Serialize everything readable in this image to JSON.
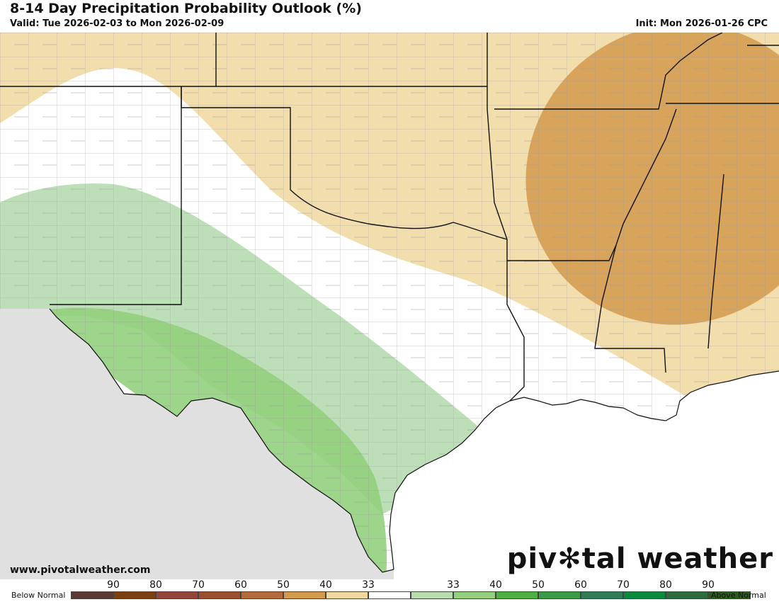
{
  "title": "8-14 Day Precipitation Probability Outlook (%)",
  "valid": "Valid: Tue 2026-02-03 to Mon 2026-02-09",
  "init": "Init: Mon 2026-01-26 CPC",
  "website": "www.pivotalweather.com",
  "brand": {
    "part1": "piv",
    "gear": "✻",
    "part2": "tal weather"
  },
  "legend": {
    "below_label": "Below Normal",
    "above_label": "Above Normal",
    "bins": [
      {
        "tick": "90",
        "color": "#5a3a33"
      },
      {
        "tick": "80",
        "color": "#7c3f10"
      },
      {
        "tick": "70",
        "color": "#93453a"
      },
      {
        "tick": "60",
        "color": "#9c4f2f"
      },
      {
        "tick": "50",
        "color": "#b46a3a"
      },
      {
        "tick": "40",
        "color": "#d39a4e"
      },
      {
        "tick": "33",
        "color": "#f0d79e"
      },
      {
        "tick": "",
        "color": "#ffffff"
      },
      {
        "tick": "33",
        "color": "#b6dcaf"
      },
      {
        "tick": "40",
        "color": "#92d07d"
      },
      {
        "tick": "50",
        "color": "#4eb043"
      },
      {
        "tick": "60",
        "color": "#3a9a48"
      },
      {
        "tick": "70",
        "color": "#2f7d57"
      },
      {
        "tick": "80",
        "color": "#0a8a3c"
      },
      {
        "tick": "90",
        "color": "#2d6a3d"
      },
      {
        "tick": "",
        "color": "#2c5a1c"
      }
    ]
  },
  "map": {
    "colors": {
      "ocean": "#ffffff",
      "mexico": "#e0e0e0",
      "land": "#ffffff",
      "below33": "#f0d79e",
      "below40": "#d39a4e",
      "above33": "#b6dcaf",
      "above40": "#92d07d"
    }
  }
}
